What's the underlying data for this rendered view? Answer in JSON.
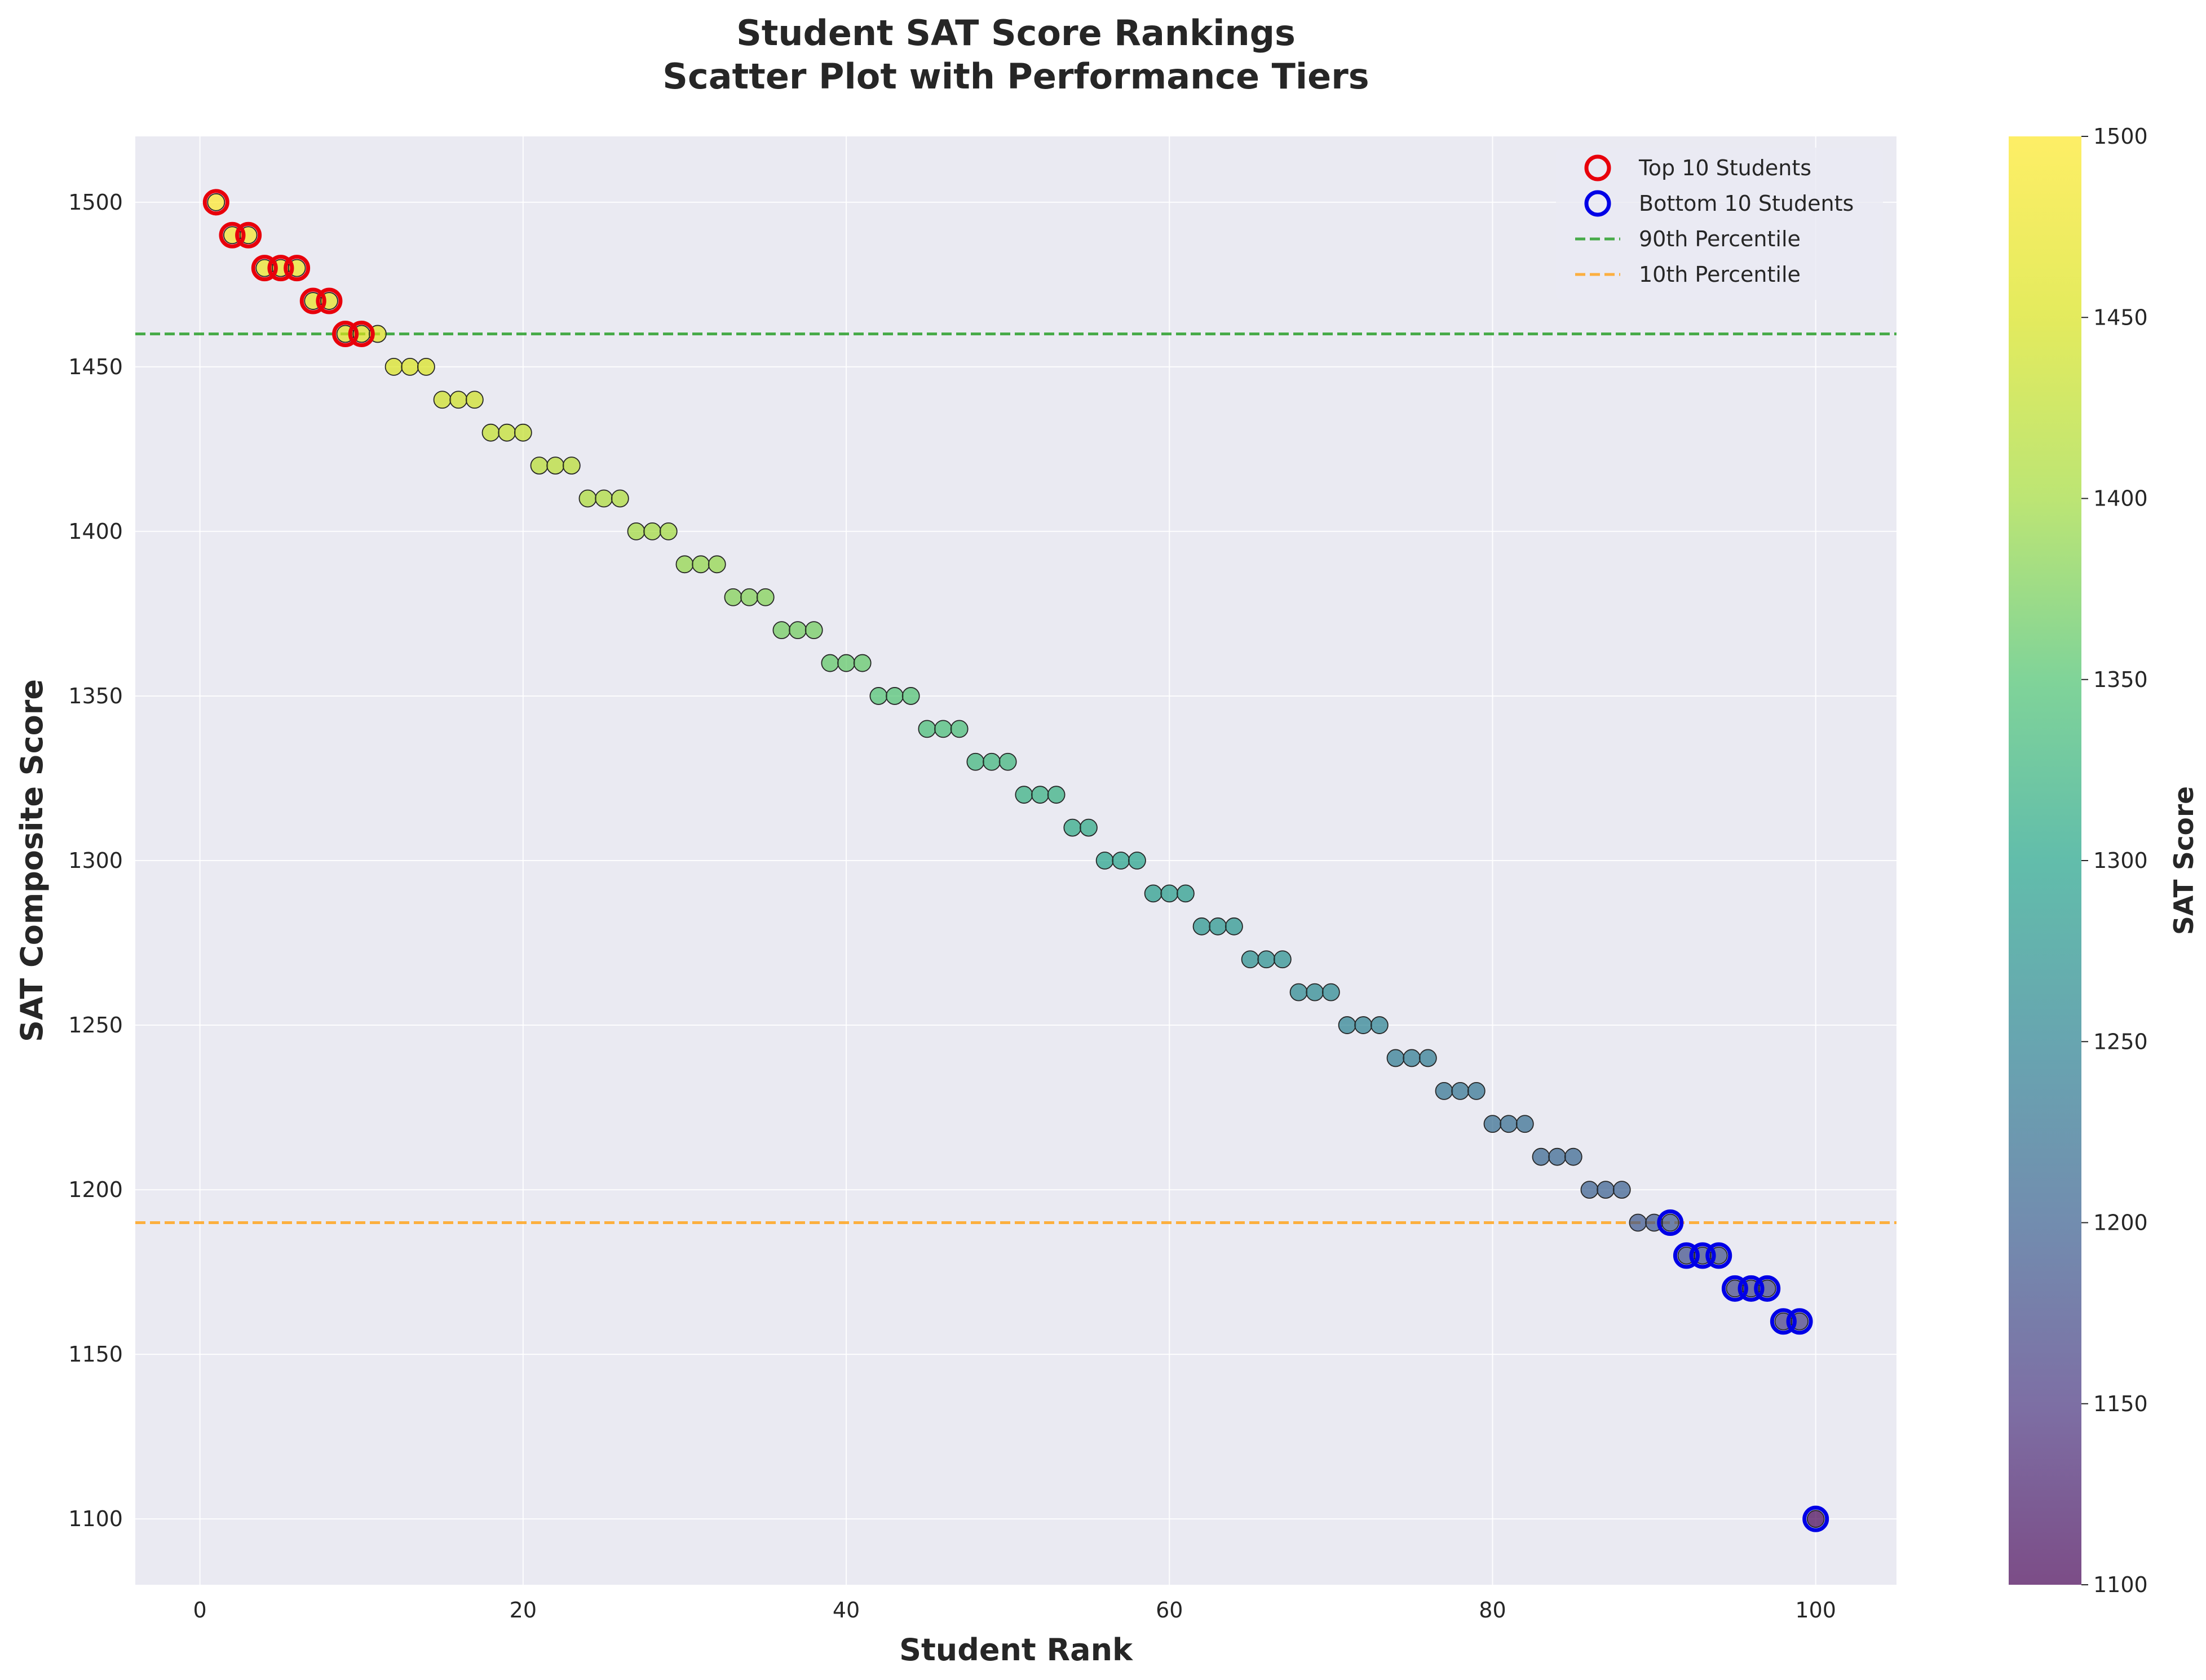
{
  "chart_data": {
    "type": "scatter",
    "title_line1": "Student SAT Score Rankings",
    "title_line2": "Scatter Plot with Performance Tiers",
    "xlabel": "Student Rank",
    "ylabel": "SAT Composite Score",
    "xlim": [
      -4,
      105
    ],
    "ylim": [
      1080,
      1520
    ],
    "xticks": [
      0,
      20,
      40,
      60,
      80,
      100
    ],
    "yticks": [
      1100,
      1150,
      1200,
      1250,
      1300,
      1350,
      1400,
      1450,
      1500
    ],
    "grid": true,
    "legend_position": "top-right",
    "colormap": "viridis",
    "colorbar": {
      "label": "SAT Score",
      "range": [
        1100,
        1500
      ],
      "ticks": [
        1100,
        1150,
        1200,
        1250,
        1300,
        1350,
        1400,
        1450,
        1500
      ]
    },
    "points": {
      "x": [
        1,
        2,
        3,
        4,
        5,
        6,
        7,
        8,
        9,
        10,
        11,
        12,
        13,
        14,
        15,
        16,
        17,
        18,
        19,
        20,
        21,
        22,
        23,
        24,
        25,
        26,
        27,
        28,
        29,
        30,
        31,
        32,
        33,
        34,
        35,
        36,
        37,
        38,
        39,
        40,
        41,
        42,
        43,
        44,
        45,
        46,
        47,
        48,
        49,
        50,
        51,
        52,
        53,
        54,
        55,
        56,
        57,
        58,
        59,
        60,
        61,
        62,
        63,
        64,
        65,
        66,
        67,
        68,
        69,
        70,
        71,
        72,
        73,
        74,
        75,
        76,
        77,
        78,
        79,
        80,
        81,
        82,
        83,
        84,
        85,
        86,
        87,
        88,
        89,
        90,
        91,
        92,
        93,
        94,
        95,
        96,
        97,
        98,
        99,
        100
      ],
      "y": [
        1500,
        1490,
        1490,
        1480,
        1480,
        1480,
        1470,
        1470,
        1460,
        1460,
        1460,
        1450,
        1450,
        1450,
        1440,
        1440,
        1440,
        1430,
        1430,
        1430,
        1420,
        1420,
        1420,
        1410,
        1410,
        1410,
        1400,
        1400,
        1400,
        1390,
        1390,
        1390,
        1380,
        1380,
        1380,
        1370,
        1370,
        1370,
        1360,
        1360,
        1360,
        1350,
        1350,
        1350,
        1340,
        1340,
        1340,
        1330,
        1330,
        1330,
        1320,
        1320,
        1320,
        1310,
        1310,
        1300,
        1300,
        1300,
        1290,
        1290,
        1290,
        1280,
        1280,
        1280,
        1270,
        1270,
        1270,
        1260,
        1260,
        1260,
        1250,
        1250,
        1250,
        1240,
        1240,
        1240,
        1230,
        1230,
        1230,
        1220,
        1220,
        1220,
        1210,
        1210,
        1210,
        1200,
        1200,
        1200,
        1190,
        1190,
        1190,
        1180,
        1180,
        1180,
        1170,
        1170,
        1170,
        1160,
        1160,
        1100
      ]
    },
    "highlight_series": [
      {
        "name": "Top 10 Students",
        "ranks": [
          1,
          2,
          3,
          4,
          5,
          6,
          7,
          8,
          9,
          10
        ],
        "edge_color": "#e8000b"
      },
      {
        "name": "Bottom 10 Students",
        "ranks": [
          91,
          92,
          93,
          94,
          95,
          96,
          97,
          98,
          99,
          100
        ],
        "edge_color": "#0000e6"
      }
    ],
    "reference_lines": [
      {
        "name": "90th Percentile",
        "y": 1460,
        "color": "#2ca02c"
      },
      {
        "name": "10th Percentile",
        "y": 1190,
        "color": "#ffa51f"
      }
    ],
    "colors": {
      "plot_background": "#eaeaf2",
      "grid": "#ffffff",
      "marker_edge": "#262626"
    }
  }
}
